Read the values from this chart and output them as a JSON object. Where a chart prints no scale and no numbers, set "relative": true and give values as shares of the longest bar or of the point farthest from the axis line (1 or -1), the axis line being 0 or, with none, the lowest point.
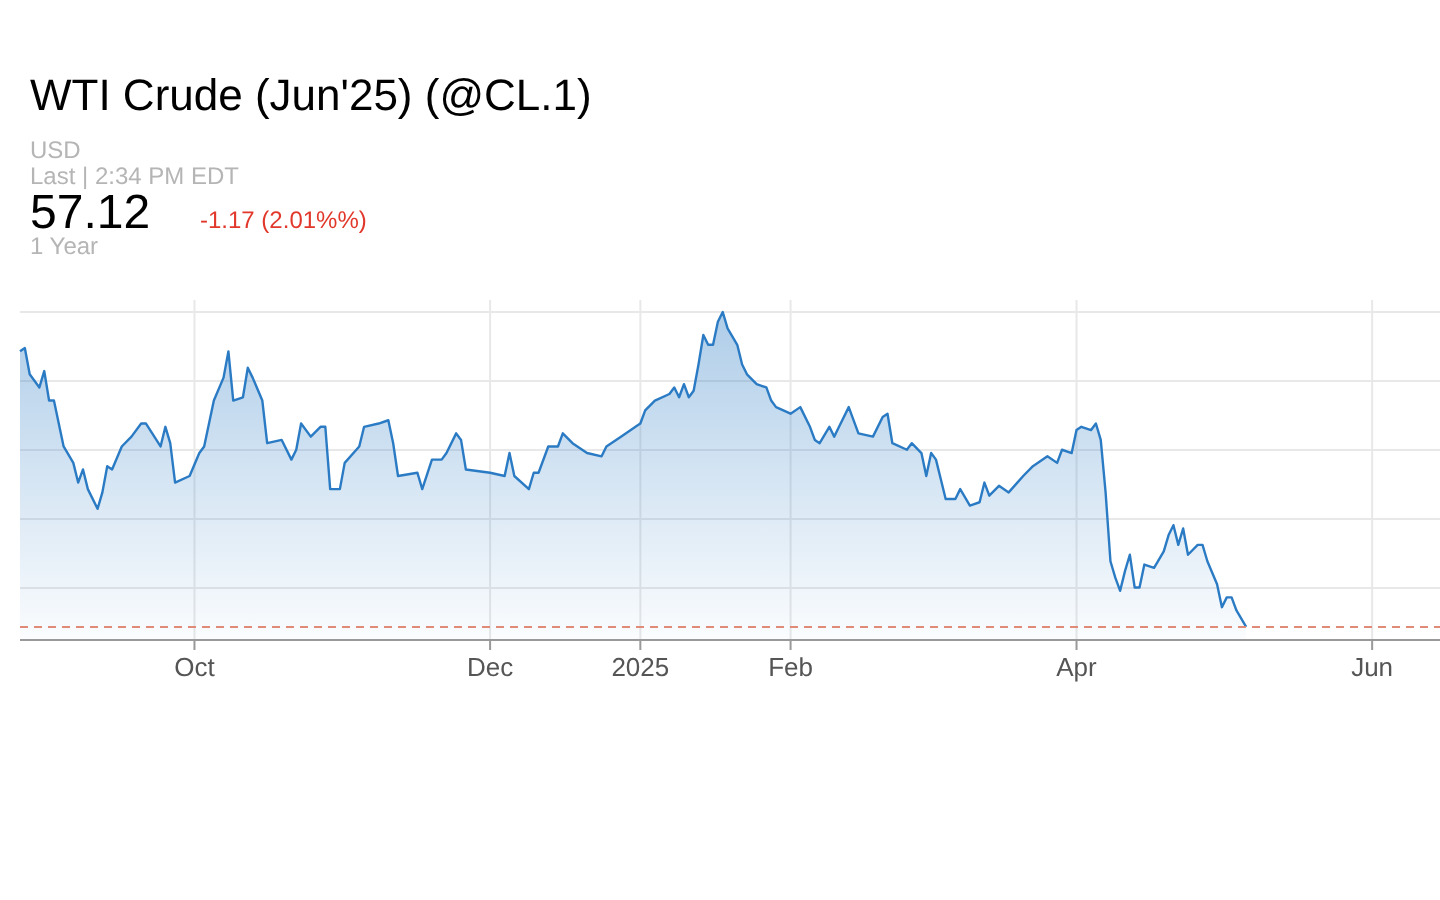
{
  "chart_data": {
    "type": "area",
    "title": "WTI Crude (Jun'25) (@CL.1)",
    "annotations": [
      "USD",
      "Last | 2:34 PM EDT",
      "57.12",
      "-1.17 (2.01%%)",
      "1 Year"
    ],
    "relative": true,
    "grid": true,
    "xlim": [
      "2024-08-26",
      "2025-06-15"
    ],
    "xticks": [
      {
        "value": "2024-10-01",
        "label": "Oct"
      },
      {
        "value": "2024-12-01",
        "label": "Dec"
      },
      {
        "value": "2025-01-01",
        "label": "2025"
      },
      {
        "value": "2025-02-01",
        "label": "Feb"
      },
      {
        "value": "2025-04-01",
        "label": "Apr"
      },
      {
        "value": "2025-06-01",
        "label": "Jun"
      }
    ],
    "ref_lines": [
      {
        "axis": "y",
        "value": 0.04,
        "color": "#e08b78",
        "line_style": "dashed"
      }
    ],
    "x": [
      "2024-08-26",
      "2024-08-27",
      "2024-08-28",
      "2024-08-30",
      "2024-08-31",
      "2024-09-01",
      "2024-09-02",
      "2024-09-04",
      "2024-09-06",
      "2024-09-07",
      "2024-09-08",
      "2024-09-09",
      "2024-09-11",
      "2024-09-12",
      "2024-09-13",
      "2024-09-14",
      "2024-09-16",
      "2024-09-18",
      "2024-09-20",
      "2024-09-21",
      "2024-09-24",
      "2024-09-25",
      "2024-09-26",
      "2024-09-27",
      "2024-09-30",
      "2024-10-02",
      "2024-10-03",
      "2024-10-05",
      "2024-10-07",
      "2024-10-08",
      "2024-10-09",
      "2024-10-11",
      "2024-10-12",
      "2024-10-13",
      "2024-10-15",
      "2024-10-16",
      "2024-10-19",
      "2024-10-21",
      "2024-10-22",
      "2024-10-23",
      "2024-10-25",
      "2024-10-27",
      "2024-10-28",
      "2024-10-29",
      "2024-10-31",
      "2024-11-01",
      "2024-11-04",
      "2024-11-05",
      "2024-11-08",
      "2024-11-10",
      "2024-11-11",
      "2024-11-12",
      "2024-11-16",
      "2024-11-17",
      "2024-11-19",
      "2024-11-21",
      "2024-11-22",
      "2024-11-24",
      "2024-11-25",
      "2024-11-26",
      "2024-12-01",
      "2024-12-04",
      "2024-12-05",
      "2024-12-06",
      "2024-12-09",
      "2024-12-10",
      "2024-12-11",
      "2024-12-13",
      "2024-12-15",
      "2024-12-16",
      "2024-12-18",
      "2024-12-21",
      "2024-12-24",
      "2024-12-25",
      "2024-12-28",
      "2024-12-31",
      "2025-01-01",
      "2025-01-02",
      "2025-01-04",
      "2025-01-07",
      "2025-01-08",
      "2025-01-09",
      "2025-01-10",
      "2025-01-11",
      "2025-01-12",
      "2025-01-13",
      "2025-01-14",
      "2025-01-15",
      "2025-01-16",
      "2025-01-17",
      "2025-01-18",
      "2025-01-19",
      "2025-01-21",
      "2025-01-22",
      "2025-01-23",
      "2025-01-25",
      "2025-01-27",
      "2025-01-28",
      "2025-01-29",
      "2025-02-01",
      "2025-02-03",
      "2025-02-05",
      "2025-02-06",
      "2025-02-07",
      "2025-02-09",
      "2025-02-10",
      "2025-02-11",
      "2025-02-13",
      "2025-02-15",
      "2025-02-18",
      "2025-02-20",
      "2025-02-21",
      "2025-02-22",
      "2025-02-25",
      "2025-02-26",
      "2025-02-28",
      "2025-03-01",
      "2025-03-02",
      "2025-03-03",
      "2025-03-04",
      "2025-03-05",
      "2025-03-07",
      "2025-03-08",
      "2025-03-10",
      "2025-03-12",
      "2025-03-13",
      "2025-03-14",
      "2025-03-16",
      "2025-03-18",
      "2025-03-21",
      "2025-03-23",
      "2025-03-26",
      "2025-03-28",
      "2025-03-29",
      "2025-03-31",
      "2025-04-01",
      "2025-04-02",
      "2025-04-04",
      "2025-04-05",
      "2025-04-06",
      "2025-04-07",
      "2025-04-08",
      "2025-04-09",
      "2025-04-10",
      "2025-04-11",
      "2025-04-12",
      "2025-04-13",
      "2025-04-14",
      "2025-04-15",
      "2025-04-17",
      "2025-04-19",
      "2025-04-20",
      "2025-04-21",
      "2025-04-22",
      "2025-04-23",
      "2025-04-24",
      "2025-04-26",
      "2025-04-27",
      "2025-04-28",
      "2025-04-30",
      "2025-05-01",
      "2025-05-02",
      "2025-05-03",
      "2025-05-04",
      "2025-05-06"
    ],
    "series": [
      {
        "color": "#2b7bc4",
        "values": [
          0.88,
          0.89,
          0.81,
          0.77,
          0.82,
          0.73,
          0.73,
          0.59,
          0.54,
          0.48,
          0.52,
          0.46,
          0.4,
          0.45,
          0.53,
          0.52,
          0.59,
          0.62,
          0.66,
          0.66,
          0.59,
          0.65,
          0.6,
          0.48,
          0.5,
          0.57,
          0.59,
          0.73,
          0.8,
          0.88,
          0.73,
          0.74,
          0.83,
          0.8,
          0.73,
          0.6,
          0.61,
          0.55,
          0.58,
          0.66,
          0.62,
          0.65,
          0.65,
          0.46,
          0.46,
          0.54,
          0.59,
          0.65,
          0.66,
          0.67,
          0.6,
          0.5,
          0.51,
          0.46,
          0.55,
          0.55,
          0.57,
          0.63,
          0.61,
          0.52,
          0.51,
          0.5,
          0.57,
          0.5,
          0.46,
          0.51,
          0.51,
          0.59,
          0.59,
          0.63,
          0.6,
          0.57,
          0.56,
          0.59,
          0.62,
          0.65,
          0.66,
          0.7,
          0.73,
          0.75,
          0.77,
          0.74,
          0.78,
          0.74,
          0.76,
          0.84,
          0.93,
          0.9,
          0.9,
          0.97,
          1,
          0.95,
          0.9,
          0.84,
          0.81,
          0.78,
          0.77,
          0.73,
          0.71,
          0.69,
          0.71,
          0.65,
          0.61,
          0.6,
          0.65,
          0.62,
          0.65,
          0.71,
          0.63,
          0.62,
          0.68,
          0.69,
          0.6,
          0.58,
          0.6,
          0.57,
          0.5,
          0.57,
          0.55,
          0.49,
          0.43,
          0.43,
          0.46,
          0.41,
          0.42,
          0.48,
          0.44,
          0.47,
          0.45,
          0.5,
          0.53,
          0.56,
          0.54,
          0.58,
          0.57,
          0.64,
          0.65,
          0.64,
          0.66,
          0.61,
          0.45,
          0.24,
          0.19,
          0.15,
          0.21,
          0.26,
          0.16,
          0.16,
          0.23,
          0.22,
          0.27,
          0.32,
          0.35,
          0.29,
          0.34,
          0.26,
          0.29,
          0.29,
          0.24,
          0.17,
          0.1,
          0.13,
          0.13,
          0.09,
          0.04
        ]
      }
    ]
  }
}
